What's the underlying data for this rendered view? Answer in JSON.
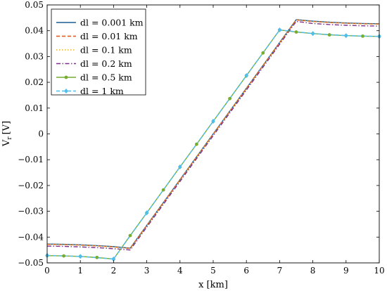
{
  "chart_data": {
    "type": "line",
    "xlabel": "x [km]",
    "ylabel": "V",
    "ylabel_sub": "r",
    "ylabel_unit": "[V]",
    "xlim": [
      0,
      10
    ],
    "ylim": [
      -0.05,
      0.05
    ],
    "x_ticks": [
      0,
      1,
      2,
      3,
      4,
      5,
      6,
      7,
      8,
      9,
      10
    ],
    "x_tick_labels": [
      "0",
      "1",
      "2",
      "3",
      "4",
      "5",
      "6",
      "7",
      "8",
      "9",
      "10"
    ],
    "y_ticks": [
      -0.05,
      -0.04,
      -0.03,
      -0.02,
      -0.01,
      0,
      0.01,
      0.02,
      0.03,
      0.04,
      0.05
    ],
    "y_tick_labels": [
      "−0.05",
      "−0.04",
      "−0.03",
      "−0.02",
      "−0.01",
      "0",
      "0.01",
      "0.02",
      "0.03",
      "0.04",
      "0.05"
    ],
    "grid": false,
    "legend_position": "top-left",
    "series": [
      {
        "name": "dl = 0.001 km",
        "color": "#1f5f8f",
        "dash": "solid",
        "marker": "none",
        "x": [
          0,
          0.5,
          1,
          1.5,
          2,
          2.5,
          7.5,
          8,
          8.5,
          9,
          9.5,
          10
        ],
        "y": [
          -0.0427,
          -0.0428,
          -0.043,
          -0.0433,
          -0.0437,
          -0.0443,
          0.0443,
          0.0437,
          0.0433,
          0.043,
          0.0428,
          0.0427
        ]
      },
      {
        "name": "dl = 0.01 km",
        "color": "#d9541a",
        "dash": "dashed",
        "marker": "none",
        "x": [
          0,
          0.5,
          1,
          1.5,
          2,
          2.5,
          7.5,
          8,
          8.5,
          9,
          9.5,
          10
        ],
        "y": [
          -0.0428,
          -0.0429,
          -0.0431,
          -0.0434,
          -0.0438,
          -0.0444,
          0.0442,
          0.0436,
          0.0432,
          0.0429,
          0.0427,
          0.0426
        ]
      },
      {
        "name": "dl = 0.1 km",
        "color": "#edb120",
        "dash": "dotted",
        "marker": "none",
        "x": [
          0,
          0.5,
          1,
          1.5,
          2,
          2.5,
          7.5,
          8,
          8.5,
          9,
          9.5,
          10
        ],
        "y": [
          -0.0429,
          -0.043,
          -0.0432,
          -0.0435,
          -0.0439,
          -0.0445,
          0.0441,
          0.0435,
          0.0431,
          0.0428,
          0.0426,
          0.0425
        ]
      },
      {
        "name": "dl = 0.2 km",
        "color": "#7e2f8e",
        "dash": "dashdot",
        "marker": "none",
        "x": [
          0,
          0.5,
          1,
          1.5,
          2,
          2.5,
          7.5,
          8,
          8.5,
          9,
          9.5,
          10
        ],
        "y": [
          -0.0435,
          -0.0436,
          -0.0438,
          -0.0441,
          -0.0445,
          -0.045,
          0.0436,
          0.0428,
          0.0424,
          0.0421,
          0.0419,
          0.0418
        ]
      },
      {
        "name": "dl = 0.5 km",
        "color": "#77ac30",
        "dash": "solid",
        "marker": "dot",
        "x": [
          0,
          0.5,
          1,
          1.5,
          2,
          2.5,
          3,
          3.5,
          4,
          4.5,
          5,
          5.5,
          6,
          6.5,
          7,
          7.5,
          8,
          8.5,
          9,
          9.5,
          10
        ],
        "y": [
          -0.0472,
          -0.0473,
          -0.0475,
          -0.0479,
          -0.0485,
          -0.0394,
          -0.0306,
          -0.0217,
          -0.0128,
          -0.004,
          0.0049,
          0.0137,
          0.0226,
          0.0314,
          0.0403,
          0.0395,
          0.0389,
          0.0384,
          0.0381,
          0.0379,
          0.0378
        ]
      },
      {
        "name": "dl = 1 km",
        "color": "#4dbeee",
        "dash": "dashed",
        "marker": "diamond",
        "x": [
          0,
          1,
          2,
          3,
          4,
          5,
          6,
          7,
          8,
          9,
          10
        ],
        "y": [
          -0.0471,
          -0.0475,
          -0.0485,
          -0.0306,
          -0.0128,
          0.0049,
          0.0226,
          0.0403,
          0.0389,
          0.0381,
          0.0378
        ]
      }
    ]
  }
}
